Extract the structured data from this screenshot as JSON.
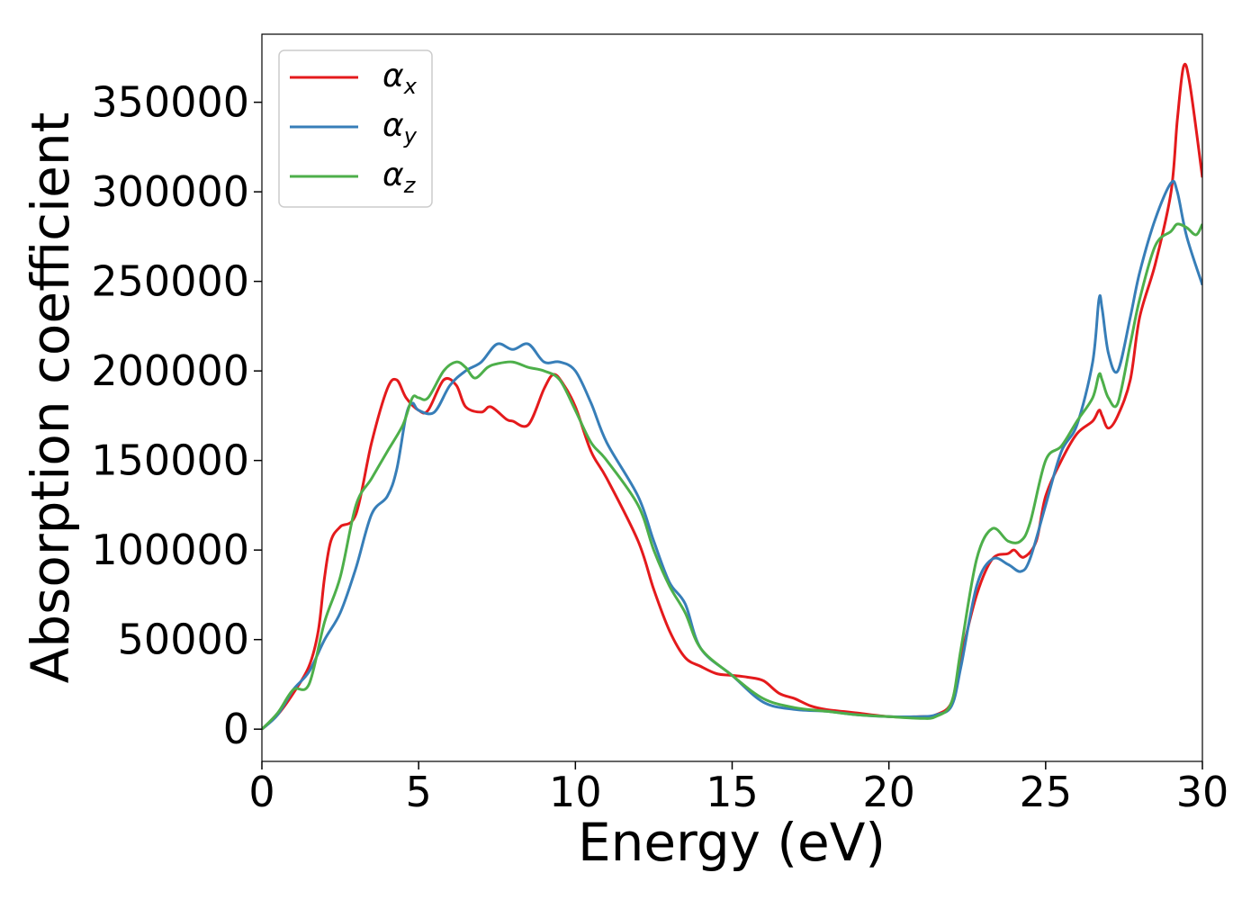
{
  "chart_data": {
    "type": "line",
    "xlabel": "Energy (eV)",
    "ylabel": "Absorption coefficient",
    "xlim": [
      0,
      30
    ],
    "ylim": [
      -18000,
      388000
    ],
    "xticks": [
      "0",
      "5",
      "10",
      "15",
      "20",
      "25",
      "30"
    ],
    "yticks": [
      "0",
      "50000",
      "100000",
      "150000",
      "200000",
      "250000",
      "300000",
      "350000"
    ],
    "grid": false,
    "legend_position": "top-left",
    "series": [
      {
        "name": "α",
        "subscript": "x",
        "color": "#e41a1c",
        "x": [
          0,
          0.5,
          1,
          1.5,
          1.8,
          2,
          2.2,
          2.5,
          3,
          3.5,
          4,
          4.3,
          4.6,
          5,
          5.3,
          5.8,
          6.2,
          6.5,
          7,
          7.3,
          7.8,
          8,
          8.5,
          9,
          9.3,
          9.6,
          10,
          10.5,
          11,
          12,
          12.5,
          13,
          13.5,
          14,
          14.5,
          15,
          15.5,
          16,
          16.5,
          17,
          17.5,
          18,
          19,
          20,
          21,
          21.5,
          22,
          22.3,
          22.8,
          23.3,
          23.8,
          24,
          24.3,
          24.7,
          25,
          25.5,
          26,
          26.5,
          26.7,
          26.8,
          27,
          27.3,
          27.7,
          28,
          28.5,
          29,
          29.2,
          29.4,
          29.6,
          30
        ],
        "y": [
          0,
          8000,
          20000,
          35000,
          55000,
          85000,
          105000,
          113000,
          120000,
          160000,
          190000,
          195000,
          185000,
          178000,
          178000,
          195000,
          192000,
          180000,
          177000,
          180000,
          173000,
          172000,
          170000,
          190000,
          198000,
          193000,
          180000,
          155000,
          140000,
          105000,
          78000,
          55000,
          40000,
          35000,
          31000,
          30000,
          29000,
          27000,
          20000,
          17000,
          13000,
          11000,
          9000,
          7000,
          7000,
          8000,
          15000,
          40000,
          75000,
          95000,
          98000,
          100000,
          96000,
          105000,
          130000,
          150000,
          165000,
          172000,
          178000,
          175000,
          168000,
          175000,
          195000,
          230000,
          260000,
          300000,
          340000,
          370000,
          360000,
          308000
        ]
      },
      {
        "name": "α",
        "subscript": "y",
        "color": "#377eb8",
        "x": [
          0,
          0.5,
          1,
          1.5,
          2,
          2.5,
          3,
          3.5,
          4,
          4.3,
          4.6,
          4.8,
          5,
          5.5,
          6,
          6.5,
          7,
          7.5,
          8,
          8.5,
          9,
          9.5,
          10,
          10.5,
          11,
          12,
          12.5,
          13,
          13.5,
          14,
          15,
          16,
          17,
          18,
          19,
          20,
          21,
          21.5,
          22,
          22.3,
          22.8,
          23.3,
          23.8,
          24.2,
          24.5,
          25,
          25.5,
          26,
          26.5,
          26.7,
          26.8,
          27,
          27.3,
          27.7,
          28,
          28.5,
          29,
          29.2,
          29.5,
          30
        ],
        "y": [
          0,
          8000,
          22000,
          32000,
          50000,
          65000,
          90000,
          120000,
          130000,
          145000,
          175000,
          182000,
          178000,
          177000,
          192000,
          200000,
          205000,
          215000,
          212000,
          215000,
          205000,
          205000,
          200000,
          182000,
          160000,
          130000,
          105000,
          82000,
          70000,
          45000,
          30000,
          15000,
          11000,
          10000,
          8000,
          7000,
          7000,
          8000,
          13000,
          35000,
          80000,
          95000,
          92000,
          88000,
          95000,
          125000,
          155000,
          170000,
          205000,
          240000,
          235000,
          210000,
          200000,
          230000,
          255000,
          285000,
          305000,
          300000,
          275000,
          248000
        ]
      },
      {
        "name": "α",
        "subscript": "z",
        "color": "#4daf4a",
        "x": [
          0,
          0.5,
          1,
          1.5,
          2,
          2.5,
          3,
          3.5,
          4,
          4.5,
          4.8,
          5,
          5.3,
          5.8,
          6.2,
          6.5,
          6.8,
          7.2,
          7.5,
          8,
          8.5,
          9,
          9.5,
          10,
          10.5,
          11,
          12,
          12.5,
          13,
          13.5,
          14,
          15,
          16,
          17,
          18,
          19,
          20,
          21,
          21.5,
          22,
          22.3,
          22.8,
          23.3,
          23.8,
          24.2,
          24.5,
          25,
          25.5,
          26,
          26.5,
          26.7,
          26.8,
          27,
          27.3,
          27.7,
          28,
          28.5,
          29,
          29.2,
          29.5,
          29.8,
          30
        ],
        "y": [
          0,
          9000,
          22000,
          25000,
          60000,
          85000,
          125000,
          140000,
          155000,
          170000,
          185000,
          185000,
          185000,
          200000,
          205000,
          202000,
          196000,
          202000,
          204000,
          205000,
          202000,
          200000,
          195000,
          178000,
          160000,
          150000,
          125000,
          100000,
          80000,
          65000,
          45000,
          30000,
          17000,
          12000,
          10000,
          8000,
          7000,
          6000,
          7000,
          15000,
          45000,
          95000,
          112000,
          105000,
          105000,
          115000,
          150000,
          158000,
          172000,
          185000,
          198000,
          195000,
          185000,
          182000,
          215000,
          240000,
          270000,
          278000,
          282000,
          280000,
          276000,
          282000
        ]
      }
    ]
  }
}
